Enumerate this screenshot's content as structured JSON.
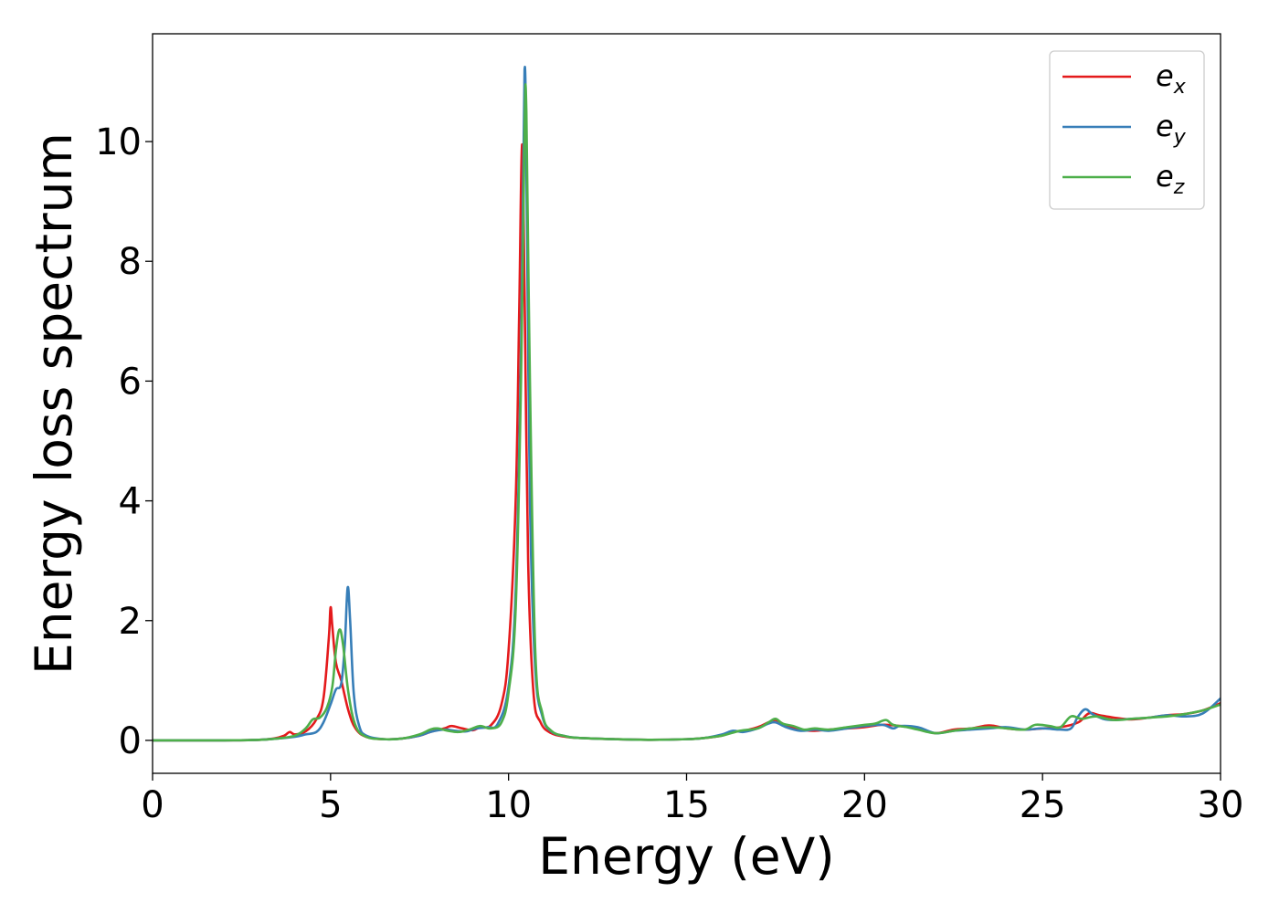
{
  "chart_data": {
    "type": "line",
    "title": "",
    "xlabel": "Energy (eV)",
    "ylabel": "Energy loss spectrum",
    "xlim": [
      0,
      30
    ],
    "ylim": [
      -0.55,
      11.8
    ],
    "xticks": [
      0,
      5,
      10,
      15,
      20,
      25,
      30
    ],
    "yticks": [
      0,
      2,
      4,
      6,
      8,
      10
    ],
    "grid": false,
    "legend_position": "top-right",
    "series": [
      {
        "name": "e_x",
        "label_base": "e",
        "label_sub": "x",
        "color": "#e41a1c",
        "x": [
          0,
          1,
          2,
          3,
          3.4,
          3.7,
          3.85,
          4.0,
          4.3,
          4.6,
          4.8,
          4.95,
          5.0,
          5.05,
          5.15,
          5.3,
          5.5,
          5.7,
          6.0,
          6.5,
          7.0,
          7.5,
          7.8,
          8.2,
          8.4,
          8.7,
          9.0,
          9.2,
          9.5,
          9.8,
          10.0,
          10.2,
          10.3,
          10.38,
          10.45,
          10.55,
          10.7,
          10.9,
          11.2,
          11.6,
          12,
          13,
          14,
          15,
          15.5,
          16,
          16.3,
          16.6,
          17.0,
          17.3,
          17.5,
          17.8,
          18.2,
          18.6,
          19.0,
          19.5,
          20.0,
          20.5,
          21.0,
          21.5,
          22.0,
          22.5,
          23.0,
          23.5,
          24.0,
          24.5,
          25.0,
          25.5,
          26.0,
          26.3,
          26.6,
          27.0,
          27.5,
          28.0,
          28.5,
          29.0,
          29.5,
          30.0
        ],
        "y": [
          0,
          0,
          0,
          0.01,
          0.03,
          0.08,
          0.14,
          0.1,
          0.15,
          0.35,
          0.7,
          1.7,
          2.22,
          1.9,
          1.3,
          1.0,
          0.5,
          0.2,
          0.06,
          0.02,
          0.03,
          0.08,
          0.14,
          0.2,
          0.24,
          0.2,
          0.17,
          0.22,
          0.25,
          0.6,
          1.5,
          4.0,
          7.2,
          9.95,
          7.5,
          3.0,
          0.8,
          0.3,
          0.12,
          0.06,
          0.04,
          0.02,
          0.01,
          0.02,
          0.04,
          0.08,
          0.14,
          0.16,
          0.22,
          0.3,
          0.34,
          0.25,
          0.18,
          0.16,
          0.18,
          0.2,
          0.22,
          0.26,
          0.24,
          0.2,
          0.12,
          0.18,
          0.2,
          0.25,
          0.2,
          0.18,
          0.2,
          0.22,
          0.3,
          0.45,
          0.42,
          0.38,
          0.35,
          0.38,
          0.42,
          0.44,
          0.5,
          0.62
        ]
      },
      {
        "name": "e_y",
        "label_base": "e",
        "label_sub": "y",
        "color": "#377eb8",
        "x": [
          0,
          1,
          2,
          3,
          3.5,
          4.0,
          4.3,
          4.6,
          4.8,
          5.0,
          5.15,
          5.3,
          5.4,
          5.48,
          5.55,
          5.65,
          5.8,
          6.0,
          6.5,
          7.0,
          7.5,
          7.8,
          8.2,
          8.5,
          8.8,
          9.1,
          9.4,
          9.7,
          10.0,
          10.2,
          10.35,
          10.45,
          10.52,
          10.6,
          10.75,
          10.95,
          11.2,
          11.6,
          12,
          13,
          14,
          15,
          15.5,
          16,
          16.3,
          16.6,
          17.0,
          17.3,
          17.5,
          17.8,
          18.2,
          18.6,
          19.0,
          19.5,
          20.0,
          20.5,
          20.8,
          21.0,
          21.5,
          22.0,
          22.5,
          23.0,
          23.5,
          24.0,
          24.5,
          25.0,
          25.5,
          25.8,
          26.0,
          26.2,
          26.4,
          26.7,
          27.0,
          27.5,
          28.0,
          28.5,
          29.0,
          29.5,
          30.0
        ],
        "y": [
          0,
          0,
          0,
          0.01,
          0.03,
          0.06,
          0.1,
          0.14,
          0.3,
          0.6,
          0.85,
          0.95,
          1.6,
          2.55,
          2.0,
          0.8,
          0.25,
          0.08,
          0.02,
          0.03,
          0.08,
          0.14,
          0.18,
          0.16,
          0.15,
          0.2,
          0.22,
          0.28,
          0.9,
          2.5,
          6.5,
          11.2,
          8.5,
          4.0,
          1.2,
          0.4,
          0.15,
          0.07,
          0.04,
          0.02,
          0.01,
          0.02,
          0.04,
          0.1,
          0.16,
          0.14,
          0.2,
          0.28,
          0.3,
          0.22,
          0.16,
          0.18,
          0.16,
          0.2,
          0.24,
          0.26,
          0.2,
          0.24,
          0.22,
          0.12,
          0.16,
          0.18,
          0.2,
          0.22,
          0.18,
          0.2,
          0.18,
          0.2,
          0.4,
          0.52,
          0.44,
          0.36,
          0.34,
          0.36,
          0.38,
          0.42,
          0.4,
          0.45,
          0.7
        ]
      },
      {
        "name": "e_z",
        "label_base": "e",
        "label_sub": "z",
        "color": "#4daf4a",
        "x": [
          0,
          1,
          2,
          3,
          3.5,
          4.0,
          4.3,
          4.5,
          4.7,
          4.9,
          5.05,
          5.15,
          5.25,
          5.35,
          5.5,
          5.7,
          6.0,
          6.5,
          7.0,
          7.5,
          7.8,
          8.0,
          8.3,
          8.6,
          8.9,
          9.2,
          9.5,
          9.8,
          10.0,
          10.2,
          10.35,
          10.45,
          10.5,
          10.6,
          10.75,
          10.95,
          11.2,
          11.6,
          12,
          13,
          14,
          15,
          15.5,
          16,
          16.5,
          17.0,
          17.3,
          17.5,
          17.7,
          18.0,
          18.3,
          18.6,
          19.0,
          19.5,
          20.0,
          20.3,
          20.6,
          20.8,
          21.2,
          21.5,
          22.0,
          22.5,
          23.0,
          23.5,
          24.0,
          24.5,
          24.8,
          25.2,
          25.5,
          25.8,
          26.1,
          26.5,
          27.0,
          27.5,
          28.0,
          28.5,
          29.0,
          29.5,
          30.0
        ],
        "y": [
          0,
          0,
          0,
          0.01,
          0.03,
          0.08,
          0.2,
          0.35,
          0.38,
          0.55,
          0.9,
          1.5,
          1.85,
          1.6,
          0.8,
          0.25,
          0.06,
          0.02,
          0.03,
          0.1,
          0.18,
          0.2,
          0.16,
          0.14,
          0.18,
          0.24,
          0.2,
          0.3,
          0.8,
          2.2,
          6.0,
          10.2,
          10.5,
          6.0,
          1.5,
          0.45,
          0.16,
          0.07,
          0.04,
          0.02,
          0.01,
          0.02,
          0.04,
          0.08,
          0.16,
          0.2,
          0.3,
          0.36,
          0.28,
          0.24,
          0.18,
          0.2,
          0.18,
          0.22,
          0.26,
          0.28,
          0.34,
          0.26,
          0.22,
          0.18,
          0.12,
          0.16,
          0.2,
          0.22,
          0.2,
          0.18,
          0.26,
          0.24,
          0.22,
          0.4,
          0.36,
          0.4,
          0.34,
          0.36,
          0.38,
          0.4,
          0.44,
          0.5,
          0.6
        ]
      }
    ]
  }
}
